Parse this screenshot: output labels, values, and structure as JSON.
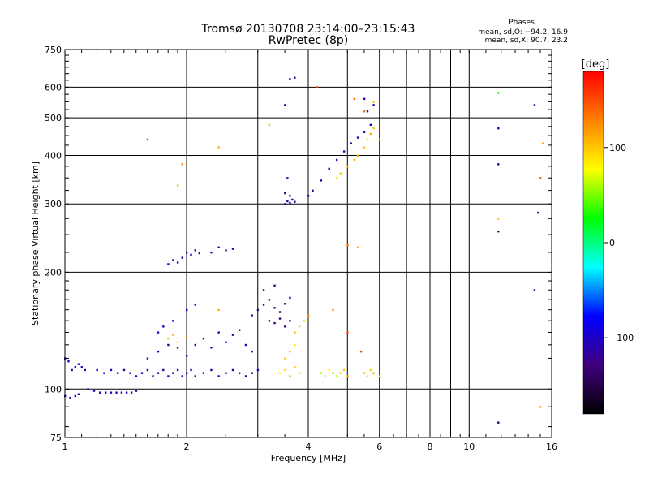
{
  "chart_data": {
    "type": "scatter",
    "title": "Tromsø 20130708 23:14:00–23:15:43",
    "subtitle": "RwPretec (8p)",
    "xlabel": "Frequency [MHz]",
    "ylabel": "Stationary phase Virtual Height [km]",
    "x_scale": "log",
    "y_scale": "log",
    "xlim": [
      1,
      16
    ],
    "ylim": [
      75,
      750
    ],
    "x_ticks": [
      1,
      2,
      4,
      6,
      8,
      10,
      16
    ],
    "x_tick_labels": [
      "1",
      "2",
      "4",
      "6",
      "8",
      "10",
      "16"
    ],
    "y_ticks": [
      75,
      100,
      200,
      300,
      400,
      500,
      600,
      750
    ],
    "y_tick_labels": [
      "75",
      "100",
      "200",
      "300",
      "400",
      "500",
      "600",
      "750"
    ],
    "grid": true,
    "stats": {
      "heading": "Phases",
      "line_o": "mean, sd,O: −94.2, 16.9",
      "line_x": "mean, sd,X:  90.7, 23.2"
    },
    "colorbar": {
      "label": "[deg]",
      "range": [
        -180,
        180
      ],
      "ticks": [
        100,
        0,
        -100
      ],
      "tick_labels": [
        "100",
        "0",
        "−100"
      ],
      "colors": [
        "#ff0000",
        "#ff8000",
        "#ffff00",
        "#00ff00",
        "#00ffff",
        "#0000ff",
        "#400080",
        "#000000"
      ]
    },
    "series": [
      {
        "points": [
          [
            1.0,
            96,
            -110
          ],
          [
            1.03,
            95,
            -105
          ],
          [
            1.06,
            96,
            -110
          ],
          [
            1.08,
            97,
            -108
          ],
          [
            1.04,
            112,
            -105
          ],
          [
            1.06,
            114,
            -110
          ],
          [
            1.08,
            116,
            -100
          ],
          [
            1.1,
            114,
            -105
          ],
          [
            1.12,
            112,
            -110
          ],
          [
            1.0,
            120,
            -100
          ],
          [
            1.02,
            118,
            -105
          ],
          [
            1.14,
            100,
            -110
          ],
          [
            1.18,
            99,
            -105
          ],
          [
            1.22,
            98,
            -110
          ],
          [
            1.26,
            98,
            -105
          ],
          [
            1.3,
            98,
            -110
          ],
          [
            1.34,
            98,
            -105
          ],
          [
            1.38,
            98,
            -110
          ],
          [
            1.42,
            98,
            -105
          ],
          [
            1.46,
            98,
            -110
          ],
          [
            1.5,
            99,
            -105
          ],
          [
            1.2,
            112,
            -100
          ],
          [
            1.25,
            110,
            -105
          ],
          [
            1.3,
            112,
            -110
          ],
          [
            1.35,
            110,
            -100
          ],
          [
            1.4,
            112,
            -105
          ],
          [
            1.45,
            110,
            -110
          ],
          [
            1.5,
            108,
            -100
          ],
          [
            1.55,
            110,
            -105
          ],
          [
            1.6,
            112,
            -110
          ],
          [
            1.65,
            108,
            -100
          ],
          [
            1.7,
            110,
            -105
          ],
          [
            1.75,
            112,
            -110
          ],
          [
            1.8,
            108,
            -100
          ],
          [
            1.85,
            110,
            -105
          ],
          [
            1.9,
            112,
            -110
          ],
          [
            1.95,
            108,
            -100
          ],
          [
            2.0,
            110,
            -105
          ],
          [
            2.05,
            112,
            -100
          ],
          [
            2.1,
            108,
            -110
          ],
          [
            2.2,
            110,
            -105
          ],
          [
            2.3,
            112,
            -110
          ],
          [
            2.4,
            108,
            -100
          ],
          [
            2.5,
            110,
            -105
          ],
          [
            2.6,
            112,
            -110
          ],
          [
            2.7,
            110,
            -100
          ],
          [
            2.8,
            108,
            -105
          ],
          [
            2.9,
            110,
            -110
          ],
          [
            3.0,
            112,
            -100
          ],
          [
            1.6,
            120,
            -100
          ],
          [
            1.7,
            125,
            -105
          ],
          [
            1.8,
            130,
            -110
          ],
          [
            1.9,
            128,
            -100
          ],
          [
            2.0,
            122,
            -105
          ],
          [
            2.1,
            130,
            -110
          ],
          [
            2.2,
            135,
            -100
          ],
          [
            2.3,
            128,
            -105
          ],
          [
            2.4,
            140,
            -110
          ],
          [
            2.5,
            132,
            -100
          ],
          [
            2.6,
            138,
            -105
          ],
          [
            2.7,
            142,
            -110
          ],
          [
            2.8,
            130,
            -100
          ],
          [
            2.9,
            125,
            -105
          ],
          [
            1.7,
            140,
            -100
          ],
          [
            1.75,
            145,
            -105
          ],
          [
            1.85,
            150,
            -110
          ],
          [
            2.0,
            160,
            -100
          ],
          [
            2.1,
            165,
            -105
          ],
          [
            1.8,
            210,
            -105
          ],
          [
            1.85,
            215,
            -110
          ],
          [
            1.9,
            212,
            -100
          ],
          [
            1.95,
            218,
            -105
          ],
          [
            2.0,
            225,
            -110
          ],
          [
            2.05,
            222,
            -100
          ],
          [
            2.1,
            228,
            -105
          ],
          [
            2.15,
            224,
            -110
          ],
          [
            2.3,
            225,
            -105
          ],
          [
            2.4,
            232,
            -100
          ],
          [
            2.5,
            228,
            -110
          ],
          [
            2.6,
            230,
            -105
          ],
          [
            2.9,
            155,
            -120
          ],
          [
            3.0,
            160,
            -125
          ],
          [
            3.1,
            165,
            -130
          ],
          [
            3.2,
            170,
            -125
          ],
          [
            3.3,
            162,
            -120
          ],
          [
            3.4,
            158,
            -125
          ],
          [
            3.5,
            166,
            -130
          ],
          [
            3.6,
            172,
            -125
          ],
          [
            3.2,
            150,
            -120
          ],
          [
            3.3,
            148,
            -125
          ],
          [
            3.4,
            152,
            -130
          ],
          [
            3.5,
            145,
            -120
          ],
          [
            3.6,
            150,
            -125
          ],
          [
            3.1,
            180,
            -120
          ],
          [
            3.3,
            185,
            -125
          ],
          [
            3.5,
            300,
            -115
          ],
          [
            3.55,
            305,
            -110
          ],
          [
            3.6,
            302,
            -115
          ],
          [
            3.65,
            308,
            -110
          ],
          [
            3.7,
            304,
            -115
          ],
          [
            3.5,
            320,
            -115
          ],
          [
            3.6,
            315,
            -110
          ],
          [
            3.55,
            350,
            -115
          ],
          [
            4.0,
            315,
            -110
          ],
          [
            4.1,
            325,
            -105
          ],
          [
            4.3,
            345,
            -110
          ],
          [
            4.5,
            370,
            -105
          ],
          [
            4.7,
            390,
            -110
          ],
          [
            4.9,
            410,
            -105
          ],
          [
            5.1,
            430,
            -110
          ],
          [
            5.3,
            445,
            -105
          ],
          [
            5.5,
            460,
            -110
          ],
          [
            5.7,
            480,
            -105
          ],
          [
            5.6,
            520,
            -110
          ],
          [
            5.8,
            540,
            -105
          ],
          [
            5.5,
            560,
            -110
          ],
          [
            3.6,
            630,
            -110
          ],
          [
            3.7,
            635,
            -105
          ],
          [
            3.5,
            540,
            -110
          ],
          [
            11.8,
            380,
            -110
          ],
          [
            11.8,
            470,
            -105
          ],
          [
            11.8,
            255,
            -140
          ],
          [
            14.5,
            540,
            -110
          ],
          [
            14.8,
            285,
            -120
          ],
          [
            11.8,
            82,
            -150
          ],
          [
            14.5,
            180,
            -100
          ]
        ]
      },
      {
        "points": [
          [
            1.8,
            135,
            100
          ],
          [
            1.85,
            138,
            110
          ],
          [
            1.9,
            132,
            95
          ],
          [
            2.0,
            136,
            120
          ],
          [
            3.4,
            110,
            80
          ],
          [
            3.5,
            112,
            95
          ],
          [
            3.6,
            108,
            110
          ],
          [
            3.7,
            114,
            100
          ],
          [
            3.8,
            110,
            85
          ],
          [
            3.5,
            120,
            100
          ],
          [
            3.6,
            125,
            110
          ],
          [
            3.7,
            130,
            90
          ],
          [
            4.3,
            110,
            60
          ],
          [
            4.4,
            108,
            70
          ],
          [
            4.5,
            112,
            80
          ],
          [
            4.6,
            110,
            50
          ],
          [
            4.7,
            108,
            65
          ],
          [
            4.8,
            110,
            90
          ],
          [
            4.9,
            112,
            100
          ],
          [
            5.0,
            108,
            110
          ],
          [
            5.5,
            110,
            100
          ],
          [
            5.6,
            108,
            90
          ],
          [
            5.7,
            112,
            95
          ],
          [
            5.8,
            110,
            110
          ],
          [
            6.0,
            108,
            85
          ],
          [
            3.7,
            140,
            110
          ],
          [
            3.8,
            145,
            100
          ],
          [
            3.9,
            150,
            90
          ],
          [
            4.0,
            155,
            120
          ],
          [
            4.7,
            350,
            90
          ],
          [
            4.8,
            360,
            95
          ],
          [
            5.0,
            375,
            100
          ],
          [
            5.2,
            390,
            105
          ],
          [
            5.3,
            400,
            110
          ],
          [
            5.5,
            420,
            100
          ],
          [
            5.6,
            440,
            90
          ],
          [
            5.7,
            455,
            110
          ],
          [
            5.8,
            470,
            100
          ],
          [
            5.2,
            560,
            140
          ],
          [
            5.5,
            520,
            130
          ],
          [
            5.8,
            550,
            100
          ],
          [
            6.0,
            440,
            110
          ],
          [
            4.2,
            600,
            160
          ],
          [
            3.2,
            480,
            100
          ],
          [
            2.4,
            420,
            110
          ],
          [
            1.9,
            335,
            100
          ],
          [
            11.8,
            580,
            30
          ],
          [
            11.8,
            275,
            100
          ],
          [
            15.0,
            350,
            140
          ],
          [
            15.2,
            430,
            110
          ],
          [
            15.0,
            90,
            110
          ],
          [
            5.0,
            235,
            130
          ],
          [
            5.3,
            232,
            110
          ],
          [
            4.6,
            160,
            120
          ],
          [
            5.0,
            140,
            150
          ],
          [
            5.4,
            125,
            160
          ],
          [
            1.6,
            440,
            160
          ],
          [
            2.4,
            160,
            110
          ],
          [
            1.95,
            380,
            120
          ]
        ]
      }
    ]
  }
}
